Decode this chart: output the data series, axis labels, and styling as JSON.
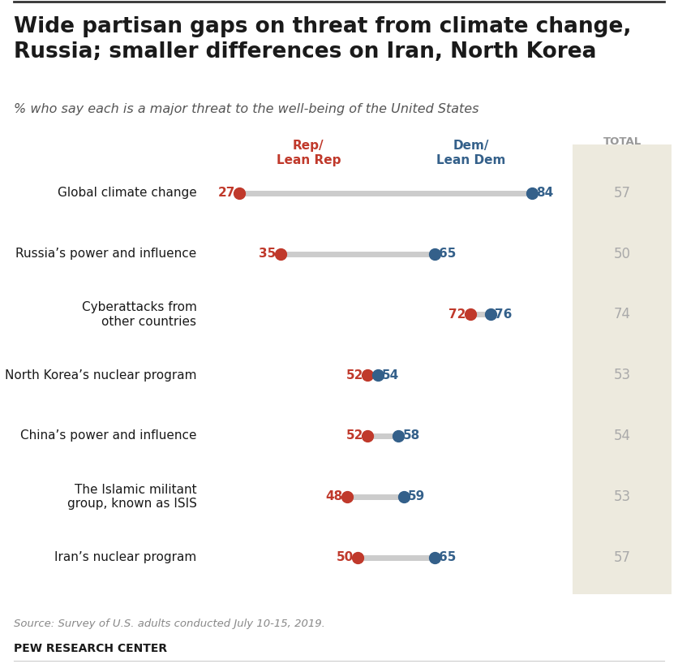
{
  "title": "Wide partisan gaps on threat from climate change,\nRussia; smaller differences on Iran, North Korea",
  "subtitle": "% who say each is a major threat to the well-being of the United States",
  "source": "Source: Survey of U.S. adults conducted July 10-15, 2019.",
  "brand": "PEW RESEARCH CENTER",
  "categories": [
    "Global climate change",
    "Russia’s power and influence",
    "Cyberattacks from\nother countries",
    "North Korea’s nuclear program",
    "China’s power and influence",
    "The Islamic militant\ngroup, known as ISIS",
    "Iran’s nuclear program"
  ],
  "rep_values": [
    27,
    35,
    72,
    52,
    52,
    48,
    50
  ],
  "dem_values": [
    84,
    65,
    76,
    54,
    58,
    59,
    65
  ],
  "totals": [
    57,
    50,
    74,
    53,
    54,
    53,
    57
  ],
  "rep_color": "#C0392B",
  "dem_color": "#34608A",
  "line_color": "#CCCCCC",
  "total_bg_color": "#EDEADE",
  "total_text_color": "#AAAAAA",
  "title_fontsize": 19,
  "subtitle_fontsize": 11.5,
  "value_fontsize": 11,
  "dot_size": 100,
  "x_min": 20,
  "x_max": 92
}
